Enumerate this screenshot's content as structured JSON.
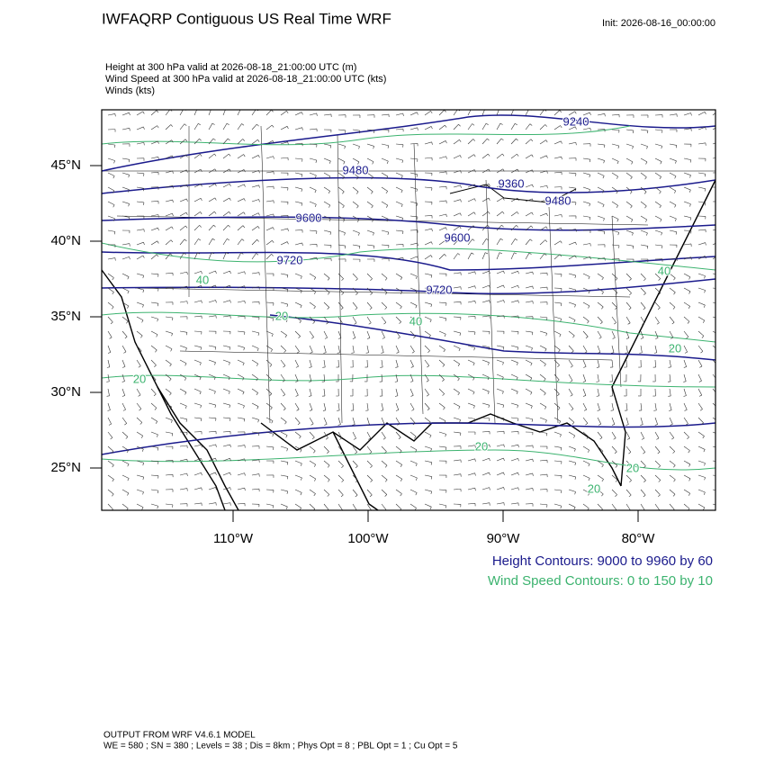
{
  "header": {
    "title": "IWFAQRP Contiguous US Real Time WRF",
    "init": "Init: 2026-08-16_00:00:00"
  },
  "fields": [
    "Height at 300 hPa valid at 2026-08-18_21:00:00 UTC   (m)",
    "Wind Speed at 300 hPa valid at 2026-08-18_21:00:00 UTC   (kts)",
    "Winds   (kts)"
  ],
  "lat_labels": [
    "45°N",
    "40°N",
    "35°N",
    "30°N",
    "25°N"
  ],
  "lon_labels": [
    "110°W",
    "100°W",
    "90°W",
    "80°W"
  ],
  "height_contour_labels": [
    "9240",
    "9480",
    "9360",
    "9480",
    "9600",
    "9600",
    "9720",
    "9720"
  ],
  "wind_contour_labels": [
    "40",
    "40",
    "40",
    "20",
    "20",
    "20",
    "20",
    "20",
    "20"
  ],
  "legend": {
    "height": "Height Contours: 9000 to 9960 by 60",
    "wind": "Wind Speed Contours: 0 to 150 by 10"
  },
  "footer": [
    "OUTPUT FROM WRF V4.6.1 MODEL",
    "WE = 580 ; SN = 380 ; Levels = 38 ; Dis = 8km ; Phys Opt = 8 ; PBL Opt = 1 ; Cu Opt = 5"
  ]
}
